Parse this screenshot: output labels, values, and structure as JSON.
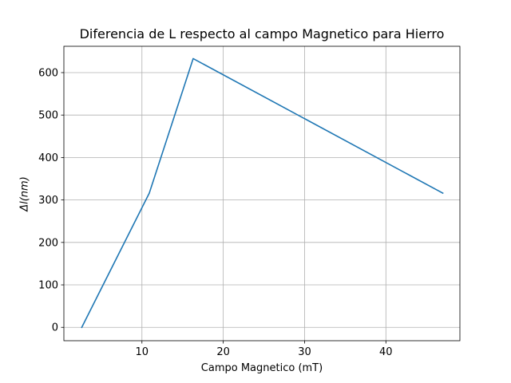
{
  "chart_data": {
    "type": "line",
    "title": "Diferencia de L respecto al campo Magnetico para Hierro",
    "xlabel": "Campo Magnetico (mT)",
    "ylabel": "Δl(nm)",
    "xlim": [
      0.4,
      49.1
    ],
    "ylim": [
      -31.5,
      662
    ],
    "x_ticks": [
      10,
      20,
      30,
      40
    ],
    "y_ticks": [
      0,
      100,
      200,
      300,
      400,
      500,
      600
    ],
    "grid": true,
    "series": [
      {
        "color": "#1f77b4",
        "x": [
          2.6,
          10.9,
          16.3,
          47.0
        ],
        "y": [
          0,
          316,
          633,
          316
        ]
      }
    ]
  }
}
